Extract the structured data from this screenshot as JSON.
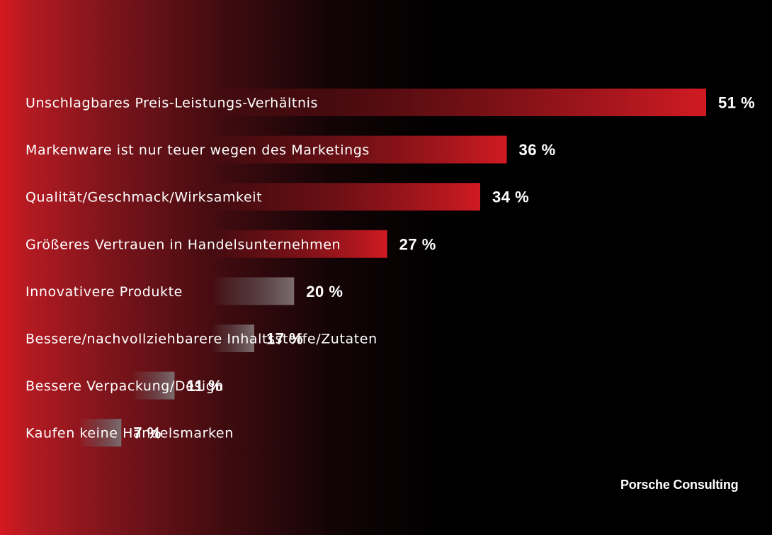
{
  "chart_data": {
    "type": "bar",
    "orientation": "horizontal",
    "categories": [
      "Unschlagbares Preis-Leistungs-Verhältnis",
      "Markenware ist nur teuer wegen des Marketings",
      "Qualität/Geschmack/Wirksamkeit",
      "Größeres Vertrauen in Handelsunternehmen",
      "Innovativere Produkte",
      "Bessere/nachvollziehbarere Inhaltsstoffe/Zutaten",
      "Bessere Verpackung/Design",
      "Kaufen keine Handelsmarken"
    ],
    "values": [
      51,
      36,
      34,
      27,
      20,
      17,
      11,
      7
    ],
    "value_labels": [
      "51 %",
      "36 %",
      "34 %",
      "27 %",
      "20 %",
      "17 %",
      "11 %",
      "7 %"
    ],
    "unit": "%",
    "xlim": [
      0,
      51
    ],
    "grid": false,
    "legend": "none",
    "colors": {
      "red_bar": "#d01a22",
      "grey_bar": "#7a6a6c",
      "text": "#ffffff",
      "background_left": "#d41820",
      "background_right": "#000000"
    },
    "highlight_count": 4
  },
  "brand": "Porsche Consulting"
}
